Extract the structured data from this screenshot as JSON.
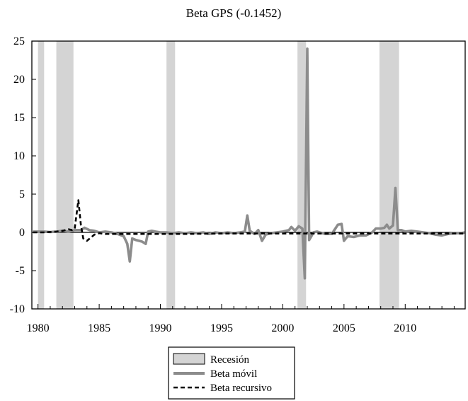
{
  "chart_data": {
    "type": "line",
    "title": "Beta GPS (-0.1452)",
    "xlabel": "",
    "ylabel": "",
    "xlim": [
      1979.5,
      2014.9
    ],
    "ylim": [
      -10,
      25
    ],
    "x_ticks": [
      "1980",
      "1985",
      "1990",
      "1995",
      "2000",
      "2005",
      "2010"
    ],
    "y_ticks": [
      "25",
      "20",
      "15",
      "10",
      "5",
      "0",
      "-5",
      "-10"
    ],
    "grid": false,
    "legend_position": "bottom-center",
    "recessions": [
      {
        "start": 1980.0,
        "end": 1980.5
      },
      {
        "start": 1981.5,
        "end": 1982.9
      },
      {
        "start": 1990.5,
        "end": 1991.2
      },
      {
        "start": 2001.2,
        "end": 2001.9
      },
      {
        "start": 2007.9,
        "end": 2009.5
      }
    ],
    "legend": {
      "recession": "Recesión",
      "rolling": "Beta móvil",
      "recursive": "Beta recursivo"
    },
    "series": [
      {
        "name": "Beta móvil",
        "color": "#8c8c8c",
        "style": "solid",
        "x": [
          1979.6,
          1980.5,
          1981.0,
          1981.5,
          1982.0,
          1982.5,
          1983.0,
          1983.5,
          1983.8,
          1984.2,
          1984.6,
          1985.0,
          1985.5,
          1986.0,
          1986.5,
          1987.0,
          1987.3,
          1987.5,
          1987.7,
          1988.0,
          1988.5,
          1988.8,
          1989.0,
          1989.3,
          1989.6,
          1990.0,
          1990.5,
          1991.0,
          1991.5,
          1992.0,
          1992.5,
          1993.0,
          1993.5,
          1994.0,
          1994.5,
          1995.0,
          1995.5,
          1996.0,
          1996.5,
          1996.9,
          1997.1,
          1997.3,
          1997.7,
          1998.0,
          1998.3,
          1998.6,
          1999.0,
          1999.5,
          2000.0,
          2000.5,
          2000.7,
          2001.0,
          2001.3,
          2001.6,
          2001.8,
          2002.0,
          2002.15,
          2002.3,
          2002.5,
          2002.8,
          2003.0,
          2003.5,
          2004.0,
          2004.5,
          2004.8,
          2005.0,
          2005.3,
          2005.8,
          2006.3,
          2006.8,
          2007.3,
          2007.6,
          2008.0,
          2008.3,
          2008.5,
          2008.7,
          2009.0,
          2009.2,
          2009.4,
          2009.7,
          2010.0,
          2010.5,
          2011.0,
          2011.5,
          2012.0,
          2012.5,
          2013.0,
          2013.5,
          2014.0,
          2014.5,
          2014.9
        ],
        "y": [
          0.1,
          0.1,
          0.05,
          0.1,
          0.2,
          0.1,
          0.3,
          0.3,
          0.6,
          0.3,
          0.2,
          0.0,
          0.1,
          0.0,
          -0.2,
          -0.5,
          -1.5,
          -3.8,
          -0.8,
          -1.0,
          -1.2,
          -1.5,
          0.1,
          0.2,
          0.1,
          0.0,
          0.0,
          -0.1,
          0.0,
          -0.1,
          0.0,
          -0.1,
          0.0,
          -0.2,
          0.0,
          -0.1,
          0.0,
          -0.1,
          0.0,
          0.1,
          2.2,
          0.2,
          -0.2,
          0.3,
          -1.1,
          -0.3,
          -0.1,
          0.0,
          0.1,
          0.3,
          0.7,
          0.2,
          0.8,
          0.5,
          -6.0,
          24.0,
          -1.0,
          -0.6,
          0.0,
          0.1,
          0.0,
          -0.2,
          -0.2,
          1.0,
          1.1,
          -1.1,
          -0.5,
          -0.6,
          -0.4,
          -0.4,
          0.0,
          0.5,
          0.5,
          0.6,
          1.0,
          0.5,
          0.9,
          5.8,
          0.3,
          0.3,
          0.1,
          0.2,
          0.1,
          0.0,
          -0.1,
          -0.3,
          -0.4,
          -0.2,
          -0.1,
          -0.1,
          0.0
        ]
      },
      {
        "name": "Beta recursivo",
        "color": "#000000",
        "style": "dashed",
        "x": [
          1979.6,
          1980.5,
          1981.5,
          1982.0,
          1982.5,
          1982.8,
          1983.0,
          1983.3,
          1983.5,
          1983.7,
          1984.0,
          1984.3,
          1984.6,
          1985.0,
          1985.5,
          1986.0,
          1987.0,
          1988.0,
          1990.0,
          1992.0,
          1995.0,
          2000.0,
          2005.0,
          2010.0,
          2014.9
        ],
        "y": [
          0.0,
          0.0,
          0.1,
          0.2,
          0.4,
          0.3,
          0.5,
          4.2,
          1.0,
          -0.8,
          -1.1,
          -0.7,
          -0.3,
          -0.1,
          -0.2,
          -0.2,
          -0.2,
          -0.2,
          -0.2,
          -0.2,
          -0.15,
          -0.15,
          -0.15,
          -0.15,
          -0.15
        ]
      }
    ]
  }
}
